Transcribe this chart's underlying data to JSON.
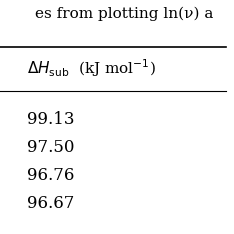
{
  "values": [
    "99.13",
    "97.50",
    "96.76",
    "96.67"
  ],
  "top_text": "es from plotting ln(ν) a",
  "background_color": "#ffffff",
  "line_color": "#000000",
  "text_color": "#000000",
  "font_size_header": 11,
  "font_size_values": 12,
  "font_size_top": 11
}
